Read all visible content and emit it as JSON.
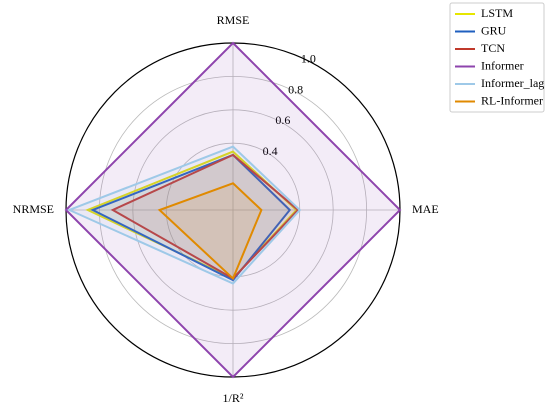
{
  "chart_data": {
    "type": "radar",
    "categories": [
      "RMSE",
      "MAE",
      "1/R²",
      "NRMSE"
    ],
    "rlim": [
      0,
      1.0
    ],
    "rticks": [
      0.4,
      0.6,
      0.8,
      {
        "value": 1.0,
        "label": "1.0"
      }
    ],
    "grid": true,
    "legend": "upper right",
    "series": [
      {
        "name": "LSTM",
        "color": "#e6e600",
        "values": [
          0.35,
          0.38,
          0.41,
          0.87
        ]
      },
      {
        "name": "GRU",
        "color": "#1f5fbf",
        "values": [
          0.33,
          0.34,
          0.42,
          0.84
        ]
      },
      {
        "name": "TCN",
        "color": "#c0392b",
        "values": [
          0.33,
          0.39,
          0.41,
          0.72
        ]
      },
      {
        "name": "Informer",
        "color": "#8e44ad",
        "values": [
          1.0,
          1.0,
          1.0,
          1.0
        ]
      },
      {
        "name": "Informer_lag",
        "color": "#9ec9e8",
        "values": [
          0.38,
          0.4,
          0.44,
          0.98
        ]
      },
      {
        "name": "RL-Informer",
        "color": "#e08a00",
        "values": [
          0.16,
          0.17,
          0.41,
          0.44
        ]
      }
    ]
  }
}
